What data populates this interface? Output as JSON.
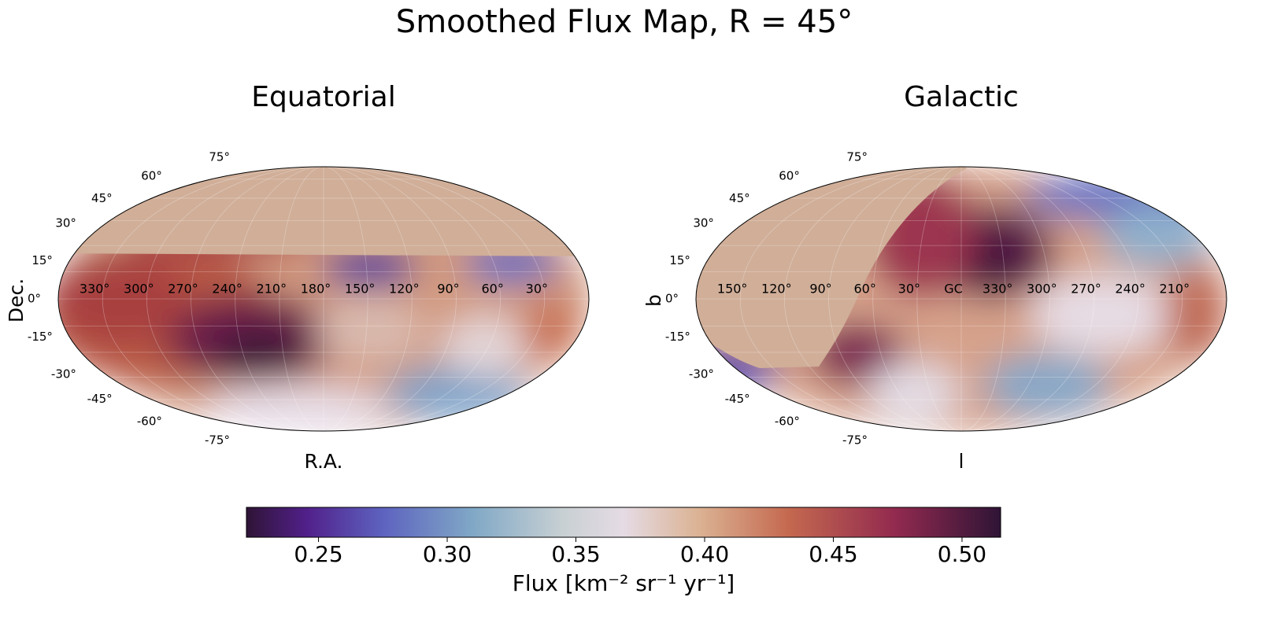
{
  "chart_data": {
    "type": "mollweide",
    "title": "Smoothed Flux Map, R = 45°",
    "panels": [
      {
        "title": "Equatorial",
        "xlabel": "R.A.",
        "ylabel": "Dec.",
        "lon_ticks": [
          {
            "value": 330,
            "label": "330°"
          },
          {
            "value": 300,
            "label": "300°"
          },
          {
            "value": 270,
            "label": "270°"
          },
          {
            "value": 240,
            "label": "240°"
          },
          {
            "value": 210,
            "label": "210°"
          },
          {
            "value": 180,
            "label": "180°"
          },
          {
            "value": 150,
            "label": "150°"
          },
          {
            "value": 120,
            "label": "120°"
          },
          {
            "value": 90,
            "label": "90°"
          },
          {
            "value": 60,
            "label": "60°"
          },
          {
            "value": 30,
            "label": "30°"
          }
        ],
        "lat_ticks": [
          {
            "value": 75,
            "label": "75°"
          },
          {
            "value": 60,
            "label": "60°"
          },
          {
            "value": 45,
            "label": "45°"
          },
          {
            "value": 30,
            "label": "30°"
          },
          {
            "value": 15,
            "label": "15°"
          },
          {
            "value": 0,
            "label": "0°"
          },
          {
            "value": -15,
            "label": "-15°"
          },
          {
            "value": -30,
            "label": "-30°"
          },
          {
            "value": -45,
            "label": "-45°"
          },
          {
            "value": -60,
            "label": "-60°"
          },
          {
            "value": -75,
            "label": "-75°"
          }
        ]
      },
      {
        "title": "Galactic",
        "xlabel": "l",
        "ylabel": "b",
        "lon_ticks": [
          {
            "value": 150,
            "label": "150°"
          },
          {
            "value": 120,
            "label": "120°"
          },
          {
            "value": 90,
            "label": "90°"
          },
          {
            "value": 60,
            "label": "60°"
          },
          {
            "value": 30,
            "label": "30°"
          },
          {
            "value": 0,
            "label": "GC"
          },
          {
            "value": 330,
            "label": "330°"
          },
          {
            "value": 300,
            "label": "300°"
          },
          {
            "value": 270,
            "label": "270°"
          },
          {
            "value": 240,
            "label": "240°"
          },
          {
            "value": 210,
            "label": "210°"
          }
        ],
        "lat_ticks": [
          {
            "value": 75,
            "label": "75°"
          },
          {
            "value": 60,
            "label": "60°"
          },
          {
            "value": 45,
            "label": "45°"
          },
          {
            "value": 30,
            "label": "30°"
          },
          {
            "value": 15,
            "label": "15°"
          },
          {
            "value": 0,
            "label": "0°"
          },
          {
            "value": -15,
            "label": "-15°"
          },
          {
            "value": -30,
            "label": "-30°"
          },
          {
            "value": -45,
            "label": "-45°"
          },
          {
            "value": -60,
            "label": "-60°"
          },
          {
            "value": -75,
            "label": "-75°"
          }
        ]
      }
    ],
    "colorbar": {
      "label": "Flux [km⁻² sr⁻¹ yr⁻¹]",
      "lim": [
        0.222,
        0.515
      ],
      "ticks": [
        0.25,
        {
          "value": 0.3,
          "label": "0.30"
        },
        0.35,
        {
          "value": 0.4,
          "label": "0.40"
        },
        0.45,
        {
          "value": 0.5,
          "label": "0.50"
        }
      ]
    }
  }
}
